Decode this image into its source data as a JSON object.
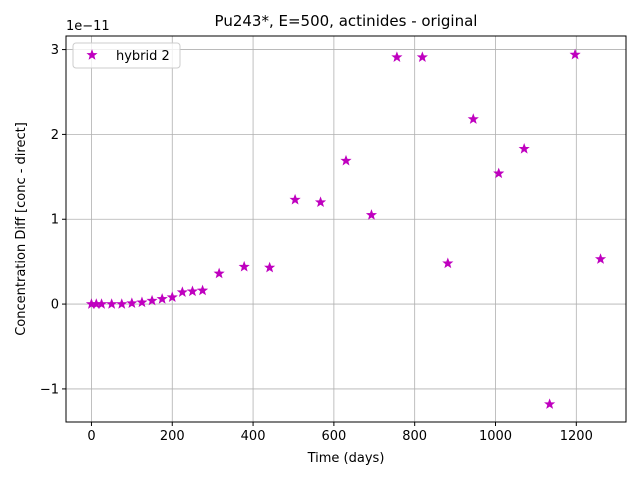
{
  "chart_data": {
    "type": "scatter",
    "title": "Pu243*, E=500, actinides - original",
    "xlabel": "Time (days)",
    "ylabel": "Concentration Diff [conc - direct]",
    "y_offset_label": "1e−11",
    "xlim": [
      -63,
      1323
    ],
    "ylim": [
      -1.39,
      3.16
    ],
    "x_ticks": [
      0,
      200,
      400,
      600,
      800,
      1000,
      1200
    ],
    "x_tick_labels": [
      "0",
      "200",
      "400",
      "600",
      "800",
      "1000",
      "1200"
    ],
    "y_ticks": [
      -1,
      0,
      1,
      2,
      3
    ],
    "y_tick_labels": [
      "−1",
      "0",
      "1",
      "2",
      "3"
    ],
    "grid": true,
    "legend_position": "upper-left",
    "series": [
      {
        "name": "hybrid 2",
        "color": "#bf00bf",
        "marker": "star",
        "x": [
          0,
          12,
          25,
          50,
          75,
          100,
          125,
          150,
          175,
          200,
          225,
          250,
          275,
          316,
          378,
          441,
          504,
          567,
          630,
          693,
          756,
          819,
          882,
          945,
          1008,
          1071,
          1134,
          1197,
          1260
        ],
        "y": [
          0.0,
          0.0,
          0.0,
          0.0,
          0.0,
          0.01,
          0.02,
          0.04,
          0.06,
          0.08,
          0.14,
          0.15,
          0.16,
          0.36,
          0.44,
          0.43,
          1.23,
          1.2,
          1.69,
          1.05,
          2.91,
          2.91,
          0.48,
          2.18,
          1.54,
          1.83,
          -1.18,
          2.94,
          0.53
        ]
      }
    ]
  }
}
